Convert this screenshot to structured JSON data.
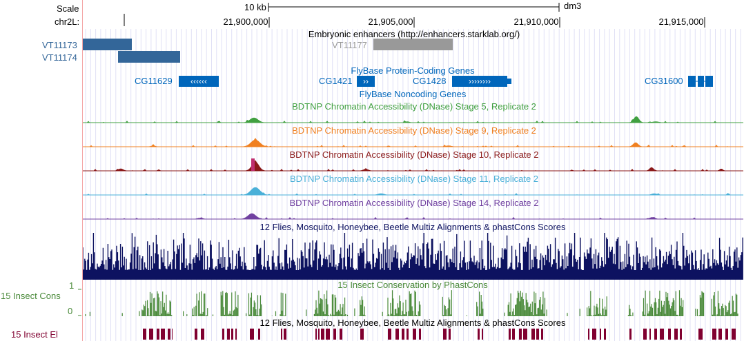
{
  "colors": {
    "scale": "#000000",
    "enhancer": "#336699",
    "enhancer_gray": "#999999",
    "flybase": "#0066bb",
    "stage5": "#40a040",
    "stage9": "#f08020",
    "stage10": "#8b1a1a",
    "stage11": "#4ab0d8",
    "stage14": "#7040a0",
    "multiz": "#0d1260",
    "cons": "#4a8a3a",
    "el": "#800030",
    "guide": "#c8c8ee",
    "left_border": "#f4a6a6"
  },
  "ruler": {
    "scale_label": "Scale",
    "chrom_label": "chr2L:",
    "kb_label": "10 kb",
    "assembly": "dm3",
    "positions": [
      "21,900,000",
      "21,905,000",
      "21,910,000",
      "21,915,000"
    ]
  },
  "enhancers": {
    "track_title": "Embryonic enhancers (http://enhancers.starklab.org/)",
    "items": [
      "VT11173",
      "VT11174",
      "VT11177"
    ]
  },
  "genes": {
    "coding_title": "FlyBase Protein-Coding Genes",
    "noncoding_title": "FlyBase Noncoding Genes",
    "items": [
      "CG11629",
      "CG1421",
      "CG1428",
      "CG31600"
    ],
    "strand_arrows": {
      "CG11629": "‹‹‹‹‹‹",
      "CG1421": "››",
      "CG1428": "››››››››"
    }
  },
  "dnase": {
    "stage5": "BDTNP Chromatin Accessibility (DNase) Stage 5, Replicate 2",
    "stage9": "BDTNP Chromatin Accessibility (DNase) Stage 9, Replicate 2",
    "stage10": "BDTNP Chromatin Accessibility (DNase) Stage 10, Replicate 2",
    "stage11": "BDTNP Chromatin Accessibility (DNase) Stage 11, Replicate 2",
    "stage14": "BDTNP Chromatin Accessibility (DNase) Stage 14, Replicate 2"
  },
  "conservation": {
    "multiz_title": "12 Flies, Mosquito, Honeybee, Beetle Multiz Alignments & phastCons Scores",
    "phastcons_title": "15 Insect Conservation by PhastCons",
    "cons_label": "15 Insect Cons",
    "axis_max": "1",
    "axis_min": "0",
    "el_title": "12 Flies, Mosquito, Honeybee, Beetle Multiz Alignments & phastCons Scores",
    "el_label": "15 Insect El"
  }
}
